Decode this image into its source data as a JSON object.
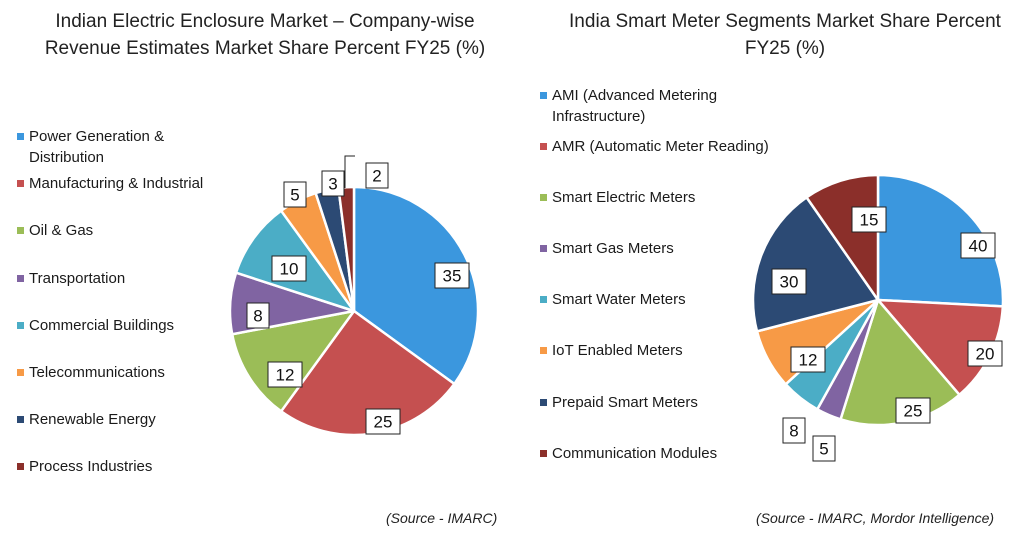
{
  "chart_data": [
    {
      "type": "pie",
      "title": "Indian Electric Enclosure Market – Company-wise Revenue Estimates Market Share Percent FY25 (%)",
      "categories": [
        "Power Generation & Distribution",
        "Manufacturing & Industrial",
        "Oil & Gas",
        "Transportation",
        "Commercial Buildings",
        "Telecommunications",
        "Renewable Energy",
        "Process Industries"
      ],
      "values": [
        35,
        25,
        12,
        8,
        10,
        5,
        3,
        2
      ],
      "colors": [
        "#3b97de",
        "#c55050",
        "#9bbd57",
        "#8064a2",
        "#4badc6",
        "#f79a46",
        "#2c4a74",
        "#8b2f2a"
      ],
      "legend_position": "left",
      "source": "(Source - IMARC)"
    },
    {
      "type": "pie",
      "title": "India Smart Meter Segments Market Share Percent FY25 (%)",
      "categories": [
        "AMI (Advanced Metering Infrastructure)",
        "AMR (Automatic Meter Reading)",
        "Smart Electric Meters",
        "Smart Gas Meters",
        "Smart Water Meters",
        "IoT Enabled Meters",
        "Prepaid Smart Meters",
        "Communication Modules"
      ],
      "values": [
        40,
        20,
        25,
        5,
        8,
        12,
        30,
        15
      ],
      "colors": [
        "#3b97de",
        "#c55050",
        "#9bbd57",
        "#8064a2",
        "#4badc6",
        "#f79a46",
        "#2c4a74",
        "#8b2f2a"
      ],
      "legend_position": "left",
      "source": "(Source - IMARC, Mordor Intelligence)"
    }
  ]
}
